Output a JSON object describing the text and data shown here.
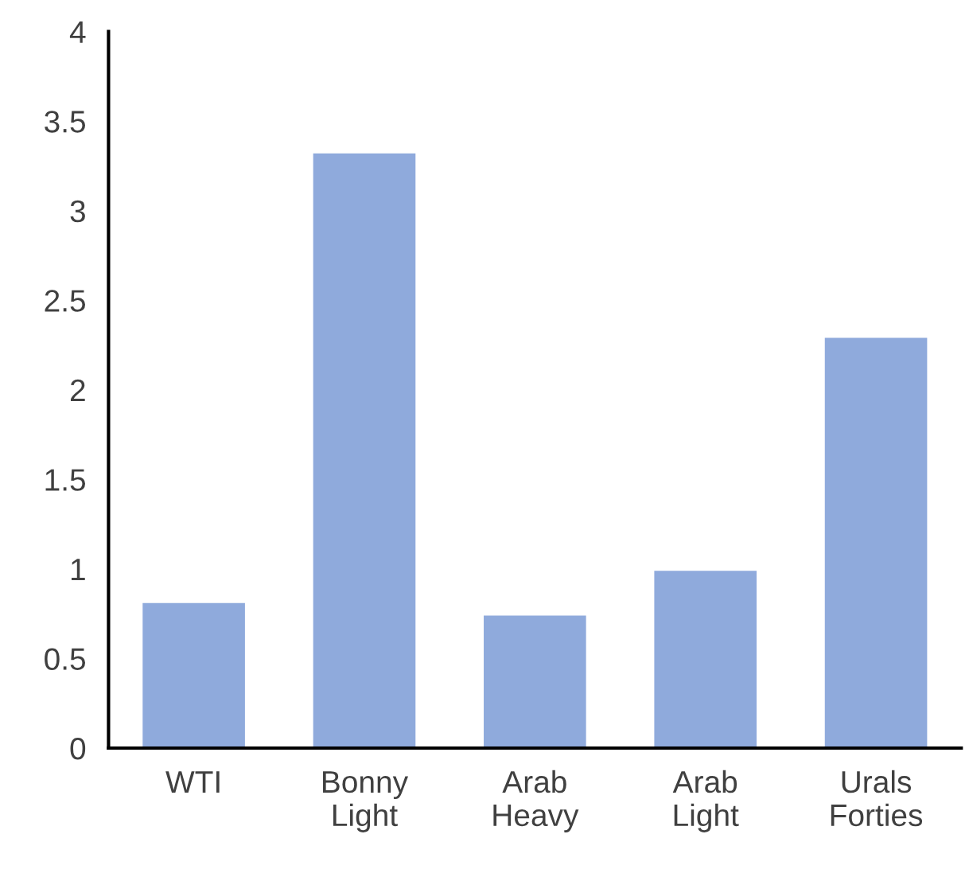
{
  "chart_data": {
    "type": "bar",
    "categories": [
      "WTI",
      "Bonny\nLight",
      "Arab\nHeavy",
      "Arab\nLight",
      "Urals\nForties"
    ],
    "values": [
      0.81,
      3.32,
      0.74,
      0.99,
      2.29
    ],
    "color": "#8faadc",
    "ylim": [
      0,
      4
    ],
    "yticks": [
      0,
      {
        "value": 0.5,
        "label": "0.5"
      },
      1,
      {
        "value": 1.5,
        "label": "1.5"
      },
      2,
      {
        "value": 2.5,
        "label": "2.5"
      },
      3,
      {
        "value": 3.5,
        "label": "3.5"
      },
      4
    ],
    "grid": false,
    "legend": false
  }
}
